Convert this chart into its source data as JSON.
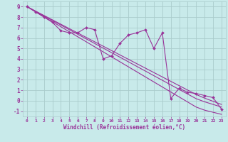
{
  "xlabel": "Windchill (Refroidissement éolien,°C)",
  "x_data": [
    0,
    1,
    2,
    3,
    4,
    5,
    6,
    7,
    8,
    9,
    10,
    11,
    12,
    13,
    14,
    15,
    16,
    17,
    18,
    19,
    20,
    21,
    22,
    23
  ],
  "y_data": [
    9.0,
    8.5,
    8.0,
    7.5,
    6.7,
    6.5,
    6.5,
    7.0,
    6.8,
    4.0,
    4.3,
    5.5,
    6.3,
    6.5,
    6.8,
    5.0,
    6.5,
    0.2,
    1.2,
    0.8,
    0.7,
    0.5,
    0.3,
    -0.8
  ],
  "trend1": [
    9.0,
    8.52,
    8.04,
    7.56,
    7.08,
    6.6,
    6.12,
    5.64,
    5.16,
    4.68,
    4.2,
    3.72,
    3.24,
    2.76,
    2.28,
    1.8,
    1.32,
    0.84,
    0.36,
    -0.12,
    -0.6,
    -0.9,
    -1.1,
    -1.3
  ],
  "trend2": [
    9.0,
    8.56,
    8.12,
    7.68,
    7.24,
    6.8,
    6.36,
    5.92,
    5.48,
    5.04,
    4.6,
    4.16,
    3.72,
    3.28,
    2.84,
    2.4,
    1.96,
    1.52,
    1.08,
    0.64,
    0.2,
    -0.1,
    -0.35,
    -0.6
  ],
  "trend3": [
    9.0,
    8.58,
    8.16,
    7.74,
    7.32,
    6.9,
    6.48,
    6.06,
    5.64,
    5.22,
    4.8,
    4.38,
    3.96,
    3.54,
    3.12,
    2.7,
    2.28,
    1.86,
    1.44,
    1.02,
    0.6,
    0.25,
    -0.05,
    -0.35
  ],
  "bg_color": "#c8eaea",
  "grid_color": "#aacccc",
  "line_color": "#993399",
  "xlim": [
    -0.5,
    23.5
  ],
  "ylim": [
    -1.5,
    9.5
  ],
  "yticks": [
    -1,
    0,
    1,
    2,
    3,
    4,
    5,
    6,
    7,
    8,
    9
  ],
  "xticks": [
    0,
    1,
    2,
    3,
    4,
    5,
    6,
    7,
    8,
    9,
    10,
    11,
    12,
    13,
    14,
    15,
    16,
    17,
    18,
    19,
    20,
    21,
    22,
    23
  ]
}
